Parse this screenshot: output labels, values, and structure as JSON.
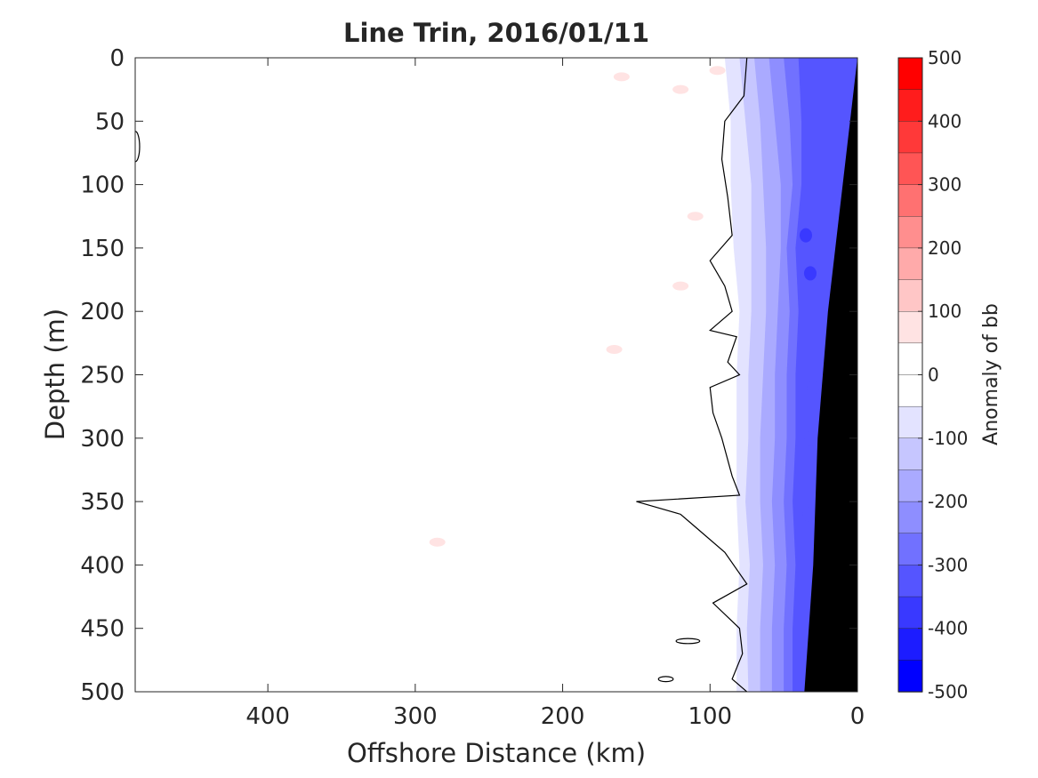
{
  "chart_data": {
    "type": "heatmap",
    "title": "Line Trin, 2016/01/11",
    "xlabel": "Offshore Distance (km)",
    "ylabel": "Depth (m)",
    "xlim": [
      490,
      0
    ],
    "ylim": [
      0,
      500
    ],
    "x_reversed": true,
    "y_reversed": true,
    "x_ticks": [
      "400",
      "300",
      "200",
      "100",
      "0"
    ],
    "x_tick_values": [
      400,
      300,
      200,
      100,
      0
    ],
    "y_ticks": [
      "0",
      "50",
      "100",
      "150",
      "200",
      "250",
      "300",
      "350",
      "400",
      "450",
      "500"
    ],
    "y_tick_values": [
      0,
      50,
      100,
      150,
      200,
      250,
      300,
      350,
      400,
      450,
      500
    ],
    "colorbar": {
      "label": "Anomaly of bb",
      "range": [
        -500,
        500
      ],
      "ticks": [
        "500",
        "400",
        "300",
        "200",
        "100",
        "0",
        "-100",
        "-200",
        "-300",
        "-400",
        "-500"
      ],
      "tick_values": [
        500,
        400,
        300,
        200,
        100,
        0,
        -100,
        -200,
        -300,
        -400,
        -500
      ],
      "levels": [
        {
          "from": 450,
          "to": 500,
          "color": "#ff0000"
        },
        {
          "from": 400,
          "to": 450,
          "color": "#ff1c1c"
        },
        {
          "from": 350,
          "to": 400,
          "color": "#ff3939"
        },
        {
          "from": 300,
          "to": 350,
          "color": "#ff5555"
        },
        {
          "from": 250,
          "to": 300,
          "color": "#ff7171"
        },
        {
          "from": 200,
          "to": 250,
          "color": "#ff8e8e"
        },
        {
          "from": 150,
          "to": 200,
          "color": "#ffaaaa"
        },
        {
          "from": 100,
          "to": 150,
          "color": "#ffc6c6"
        },
        {
          "from": 50,
          "to": 100,
          "color": "#ffe3e3"
        },
        {
          "from": 0,
          "to": 50,
          "color": "#ffffff"
        },
        {
          "from": -50,
          "to": 0,
          "color": "#ffffff"
        },
        {
          "from": -100,
          "to": -50,
          "color": "#e3e3ff"
        },
        {
          "from": -150,
          "to": -100,
          "color": "#c6c6ff"
        },
        {
          "from": -200,
          "to": -150,
          "color": "#aaaaff"
        },
        {
          "from": -250,
          "to": -200,
          "color": "#8e8eff"
        },
        {
          "from": -300,
          "to": -250,
          "color": "#7171ff"
        },
        {
          "from": -350,
          "to": -300,
          "color": "#5555ff"
        },
        {
          "from": -400,
          "to": -350,
          "color": "#3939ff"
        },
        {
          "from": -450,
          "to": -400,
          "color": "#1c1cff"
        },
        {
          "from": -500,
          "to": -450,
          "color": "#0000ff"
        }
      ]
    },
    "anomaly_bands": [
      {
        "level": -100,
        "color": "#e3e3ff",
        "x_at_depth": [
          [
            0,
            90
          ],
          [
            50,
            86
          ],
          [
            100,
            86
          ],
          [
            150,
            84
          ],
          [
            200,
            80
          ],
          [
            250,
            82
          ],
          [
            300,
            82
          ],
          [
            350,
            82
          ],
          [
            400,
            80
          ],
          [
            450,
            82
          ],
          [
            500,
            82
          ]
        ]
      },
      {
        "level": -150,
        "color": "#c6c6ff",
        "x_at_depth": [
          [
            0,
            80
          ],
          [
            50,
            76
          ],
          [
            100,
            72
          ],
          [
            150,
            72
          ],
          [
            200,
            72
          ],
          [
            250,
            74
          ],
          [
            300,
            74
          ],
          [
            350,
            76
          ],
          [
            400,
            73
          ],
          [
            450,
            75
          ],
          [
            500,
            74
          ]
        ]
      },
      {
        "level": -200,
        "color": "#aaaaff",
        "x_at_depth": [
          [
            0,
            70
          ],
          [
            50,
            66
          ],
          [
            100,
            64
          ],
          [
            150,
            62
          ],
          [
            200,
            62
          ],
          [
            250,
            64
          ],
          [
            300,
            66
          ],
          [
            350,
            66
          ],
          [
            400,
            64
          ],
          [
            450,
            66
          ],
          [
            500,
            66
          ]
        ]
      },
      {
        "level": -250,
        "color": "#8e8eff",
        "x_at_depth": [
          [
            0,
            60
          ],
          [
            50,
            56
          ],
          [
            100,
            52
          ],
          [
            150,
            52
          ],
          [
            200,
            54
          ],
          [
            250,
            56
          ],
          [
            300,
            56
          ],
          [
            350,
            58
          ],
          [
            400,
            56
          ],
          [
            450,
            58
          ],
          [
            500,
            58
          ]
        ]
      },
      {
        "level": -300,
        "color": "#7171ff",
        "x_at_depth": [
          [
            0,
            50
          ],
          [
            50,
            46
          ],
          [
            100,
            44
          ],
          [
            150,
            48
          ],
          [
            200,
            46
          ],
          [
            250,
            48
          ],
          [
            300,
            48
          ],
          [
            350,
            50
          ],
          [
            400,
            48
          ],
          [
            450,
            50
          ],
          [
            500,
            50
          ]
        ]
      },
      {
        "level": -350,
        "color": "#5555ff",
        "x_at_depth": [
          [
            0,
            40
          ],
          [
            50,
            38
          ],
          [
            100,
            38
          ],
          [
            150,
            42
          ],
          [
            200,
            40
          ],
          [
            250,
            42
          ],
          [
            300,
            42
          ],
          [
            350,
            44
          ],
          [
            400,
            42
          ],
          [
            450,
            44
          ],
          [
            500,
            44
          ]
        ]
      }
    ],
    "anomaly_spots": [
      {
        "x": 35,
        "y": 140,
        "value": -400
      },
      {
        "x": 32,
        "y": 170,
        "value": -400
      },
      {
        "x": 30,
        "y": 260,
        "value": -350
      },
      {
        "x": 32,
        "y": 300,
        "value": -350
      },
      {
        "x": 33,
        "y": 360,
        "value": -350
      },
      {
        "x": 35,
        "y": 470,
        "value": -350
      },
      {
        "x": 160,
        "y": 15,
        "value": 75
      },
      {
        "x": 120,
        "y": 25,
        "value": 75
      },
      {
        "x": 95,
        "y": 10,
        "value": 75
      },
      {
        "x": 110,
        "y": 125,
        "value": 75
      },
      {
        "x": 120,
        "y": 180,
        "value": 75
      },
      {
        "x": 165,
        "y": 230,
        "value": 75
      },
      {
        "x": 285,
        "y": 382,
        "value": 75
      }
    ],
    "zero_contour": [
      [
        75,
        0
      ],
      [
        77,
        30
      ],
      [
        90,
        50
      ],
      [
        92,
        80
      ],
      [
        88,
        110
      ],
      [
        85,
        140
      ],
      [
        100,
        160
      ],
      [
        90,
        180
      ],
      [
        85,
        200
      ],
      [
        100,
        215
      ],
      [
        82,
        220
      ],
      [
        88,
        240
      ],
      [
        80,
        250
      ],
      [
        100,
        260
      ],
      [
        98,
        280
      ],
      [
        92,
        300
      ],
      [
        85,
        330
      ],
      [
        80,
        345
      ],
      [
        150,
        350
      ],
      [
        120,
        360
      ],
      [
        110,
        370
      ],
      [
        90,
        390
      ],
      [
        75,
        415
      ],
      [
        98,
        430
      ],
      [
        80,
        450
      ],
      [
        78,
        470
      ],
      [
        85,
        490
      ],
      [
        75,
        500
      ],
      [
        100,
        500
      ]
    ],
    "closed_contours": [
      {
        "cx": 490,
        "cy": 70,
        "rx": 3,
        "ry": 12
      },
      {
        "cx": 115,
        "cy": 460,
        "rx": 8,
        "ry": 2
      },
      {
        "cx": 130,
        "cy": 490,
        "rx": 5,
        "ry": 2
      }
    ],
    "bathymetry": [
      [
        0,
        0
      ],
      [
        10,
        100
      ],
      [
        20,
        200
      ],
      [
        27,
        300
      ],
      [
        30,
        400
      ],
      [
        36,
        500
      ],
      [
        0,
        500
      ]
    ]
  }
}
